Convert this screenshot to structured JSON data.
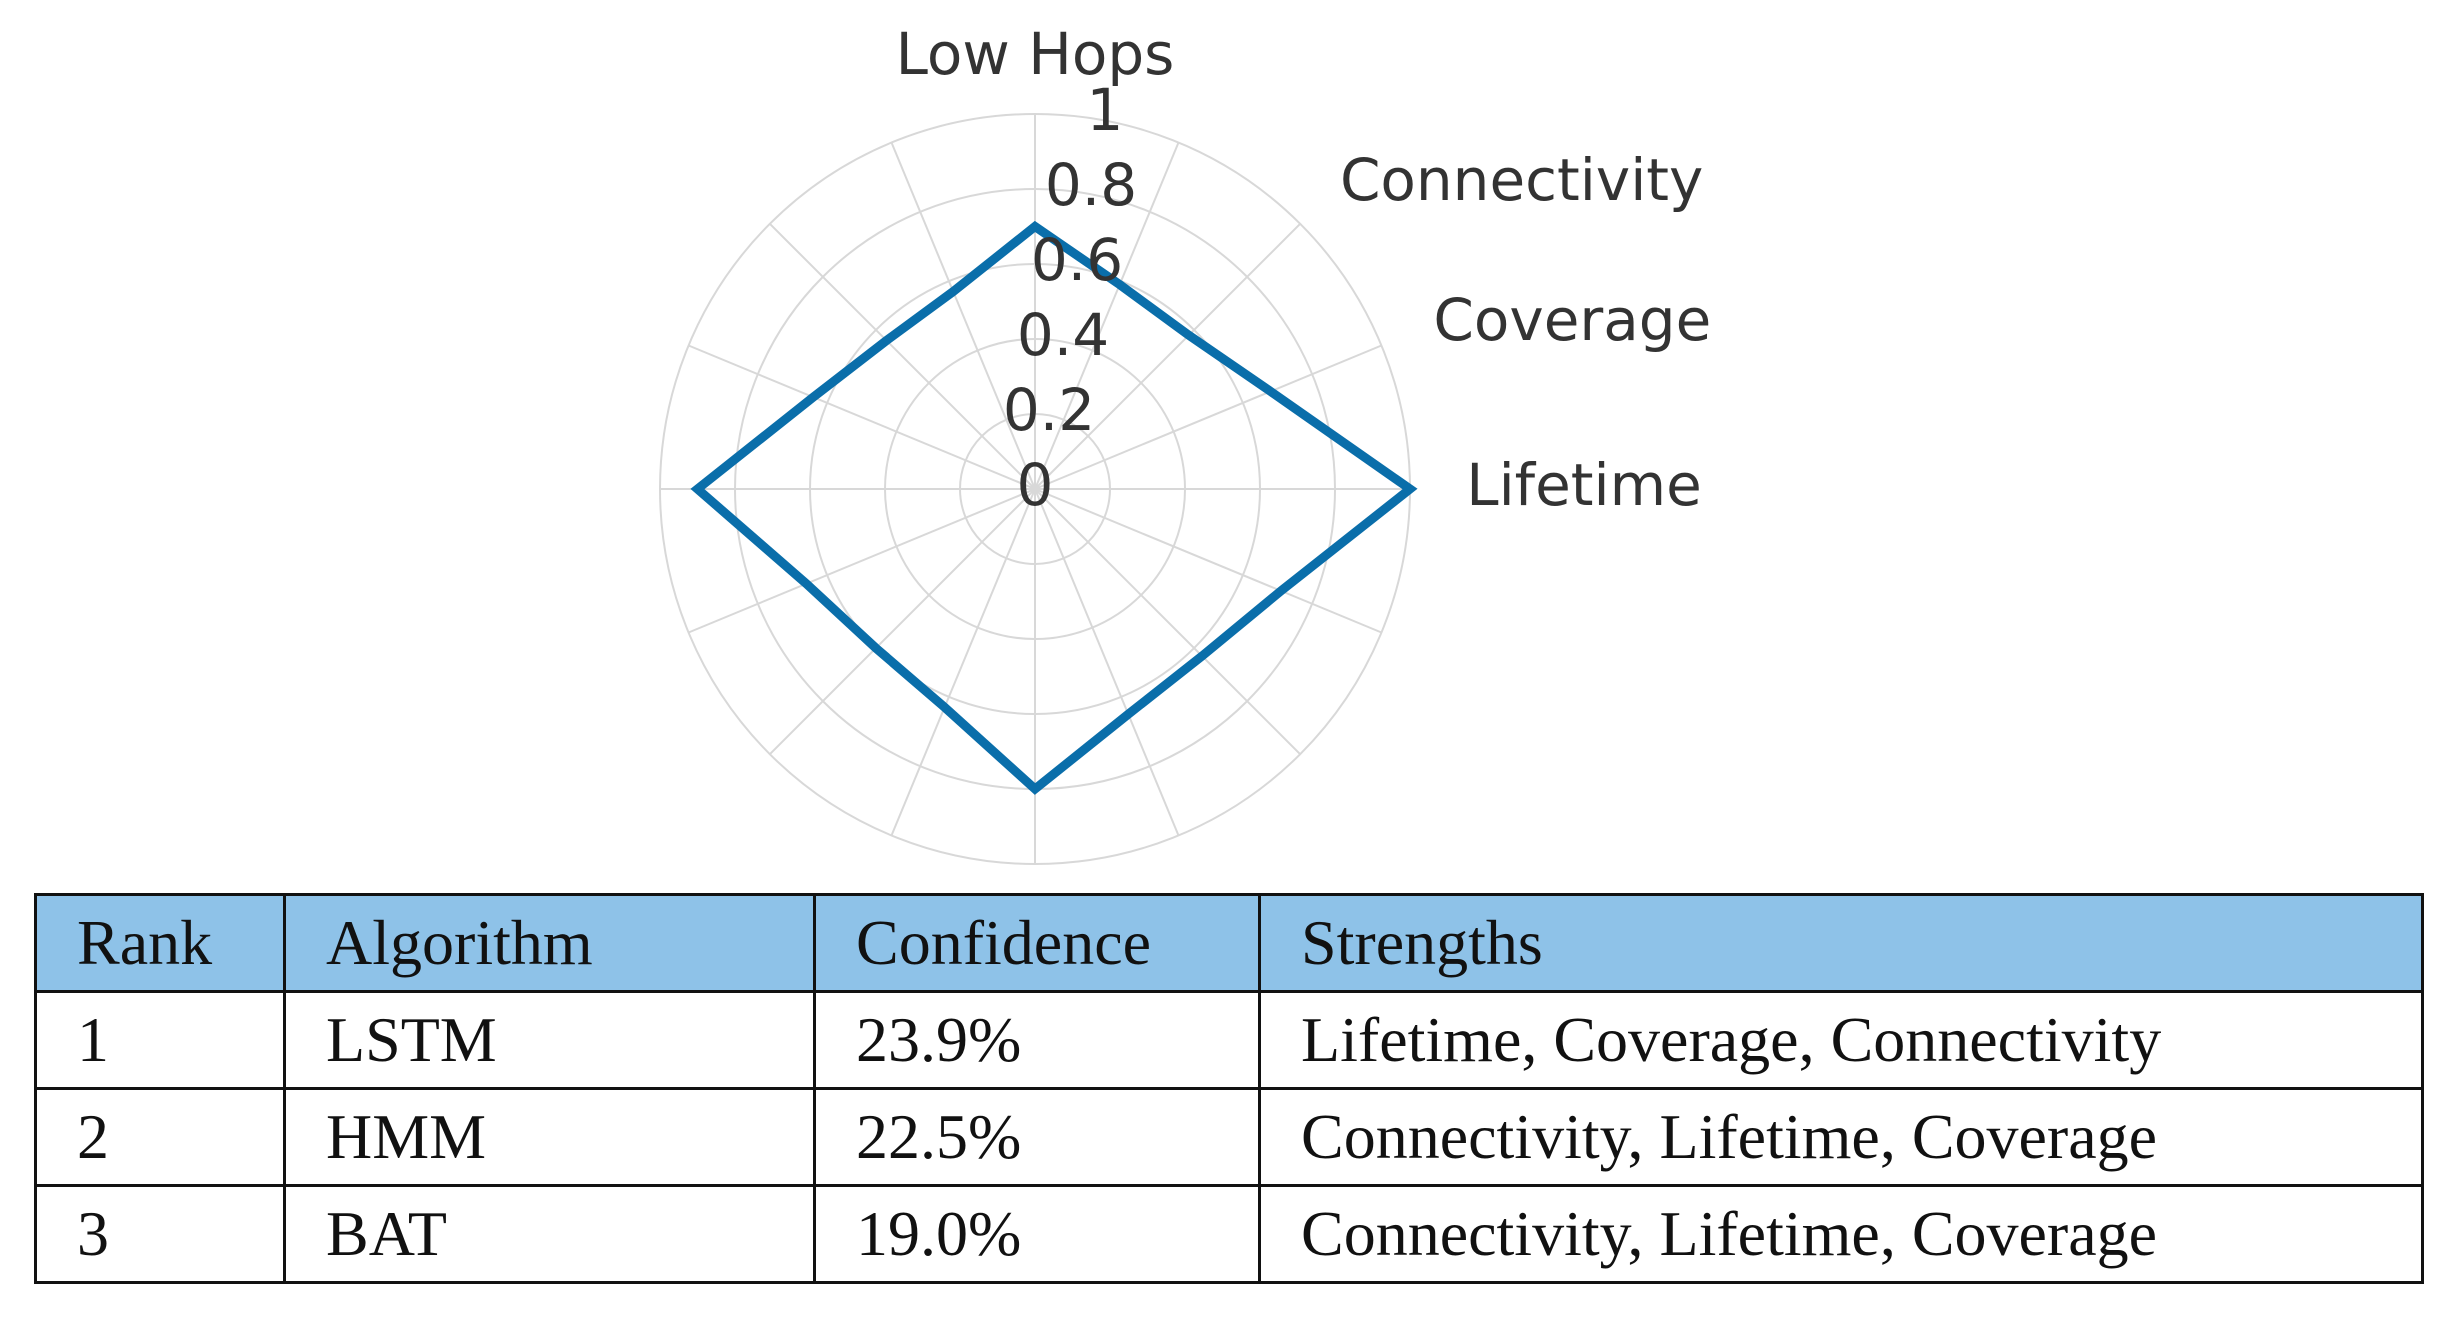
{
  "chart_data": {
    "type": "radar",
    "categories": [
      "Low Hops",
      null,
      "Connectivity",
      "Coverage",
      "Lifetime",
      null,
      null,
      null,
      null,
      null,
      null,
      null,
      null,
      null,
      null,
      null
    ],
    "values": [
      0.7,
      0.59,
      0.58,
      0.68,
      1.0,
      0.71,
      0.63,
      0.65,
      0.8,
      0.63,
      0.6,
      0.66,
      0.9,
      0.64,
      0.56,
      0.57
    ],
    "color": "#0a6eaa",
    "ylim": [
      0,
      1
    ],
    "yticks": [
      0,
      0.2,
      0.4,
      0.6,
      0.8,
      1
    ],
    "grid": true
  },
  "table": {
    "header": [
      "Rank",
      "Algorithm",
      "Confidence",
      "Strengths"
    ],
    "rows": [
      [
        "1",
        "LSTM",
        "23.9%",
        "Lifetime, Coverage, Connectivity"
      ],
      [
        "2",
        "HMM",
        "22.5%",
        "Connectivity, Lifetime, Coverage"
      ],
      [
        "3",
        "BAT",
        "19.0%",
        "Connectivity, Lifetime, Coverage"
      ]
    ]
  }
}
